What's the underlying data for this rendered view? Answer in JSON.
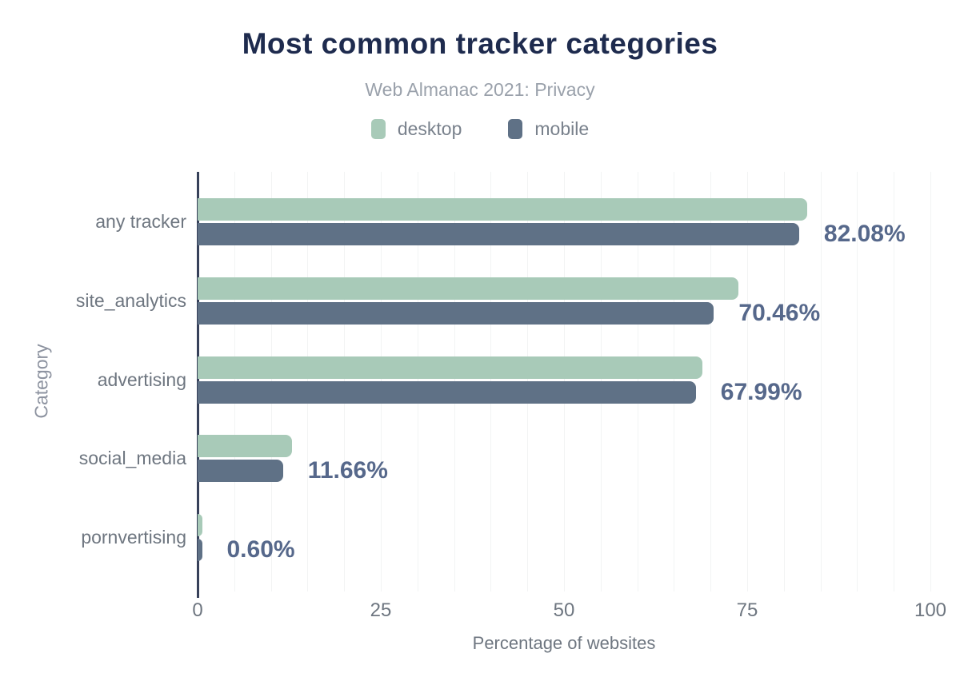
{
  "chart_data": {
    "type": "bar",
    "orientation": "horizontal",
    "title": "Most common tracker categories",
    "subtitle": "Web Almanac 2021: Privacy",
    "categories": [
      "any tracker",
      "site_analytics",
      "advertising",
      "social_media",
      "pornvertising"
    ],
    "series": [
      {
        "name": "desktop",
        "color": "#a8cab8",
        "values": [
          83.2,
          73.8,
          68.9,
          12.9,
          0.7
        ]
      },
      {
        "name": "mobile",
        "color": "#5f7186",
        "values": [
          82.08,
          70.46,
          67.99,
          11.66,
          0.6
        ]
      }
    ],
    "value_labels": {
      "labeled_series": "mobile",
      "labels": [
        "82.08%",
        "70.46%",
        "67.99%",
        "11.66%",
        "0.60%"
      ]
    },
    "xlabel": "Percentage of websites",
    "ylabel": "Category",
    "xticks": [
      0,
      25,
      50,
      75,
      100
    ],
    "xlim": [
      0,
      100
    ],
    "grid_step": 5,
    "grid": "vertical",
    "legend_position": "top",
    "theme": {
      "title_color": "#1e2b4e",
      "subtitle_color": "#9aa1ab",
      "legend_text": "#79818c",
      "category_label": "#6e7680",
      "tick_label": "#6e7680",
      "axis_title": "#6e7680",
      "y_axis_title": "#8d93a0",
      "value_label": "#56688b",
      "axis_line": "#37415a",
      "gridline": "#f2f3f4",
      "background": "#ffffff"
    }
  }
}
